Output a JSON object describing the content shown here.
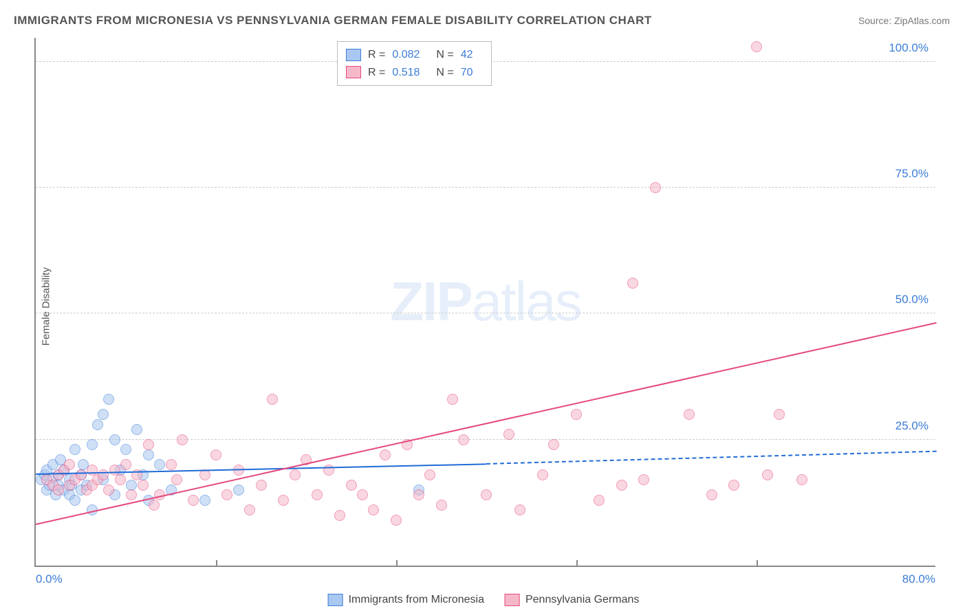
{
  "title": "IMMIGRANTS FROM MICRONESIA VS PENNSYLVANIA GERMAN FEMALE DISABILITY CORRELATION CHART",
  "source": "Source: ZipAtlas.com",
  "ylabel": "Female Disability",
  "watermark_a": "ZIP",
  "watermark_b": "atlas",
  "chart": {
    "type": "scatter",
    "xlim": [
      0,
      80
    ],
    "ylim": [
      0,
      105
    ],
    "xticks": [
      0,
      16,
      32,
      48,
      64,
      80
    ],
    "xtick_labels": [
      "0.0%",
      "",
      "",
      "",
      "",
      "80.0%"
    ],
    "yticks": [
      25,
      50,
      75,
      100
    ],
    "ytick_labels": [
      "25.0%",
      "50.0%",
      "75.0%",
      "100.0%"
    ],
    "background_color": "#ffffff",
    "grid_color": "#cccccc",
    "axis_color": "#888888",
    "point_radius": 8,
    "point_opacity": 0.55,
    "series": [
      {
        "name": "Immigrants from Micronesia",
        "color_fill": "#a9c7f0",
        "color_stroke": "#3b7dd8",
        "R": "0.082",
        "N": "42",
        "trend": {
          "x1": 0,
          "y1": 18,
          "x2": 40,
          "y2": 20,
          "extend_x2": 80,
          "extend_y2": 22.5,
          "color": "#1f6bd6"
        },
        "points": [
          [
            0.5,
            17
          ],
          [
            0.8,
            18
          ],
          [
            1,
            15
          ],
          [
            1,
            19
          ],
          [
            1.2,
            16
          ],
          [
            1.5,
            17.5
          ],
          [
            1.5,
            20
          ],
          [
            1.8,
            14
          ],
          [
            2,
            18
          ],
          [
            2,
            16
          ],
          [
            2.2,
            21
          ],
          [
            2.5,
            15
          ],
          [
            2.5,
            19
          ],
          [
            3,
            17
          ],
          [
            3,
            14
          ],
          [
            3.2,
            16
          ],
          [
            3.5,
            13
          ],
          [
            3.5,
            23
          ],
          [
            4,
            18
          ],
          [
            4,
            15
          ],
          [
            4.2,
            20
          ],
          [
            4.5,
            16
          ],
          [
            5,
            11
          ],
          [
            5,
            24
          ],
          [
            5.5,
            28
          ],
          [
            6,
            30
          ],
          [
            6,
            17
          ],
          [
            6.5,
            33
          ],
          [
            7,
            25
          ],
          [
            7,
            14
          ],
          [
            7.5,
            19
          ],
          [
            8,
            23
          ],
          [
            8.5,
            16
          ],
          [
            9,
            27
          ],
          [
            9.5,
            18
          ],
          [
            10,
            13
          ],
          [
            10,
            22
          ],
          [
            11,
            20
          ],
          [
            12,
            15
          ],
          [
            15,
            13
          ],
          [
            18,
            15
          ],
          [
            34,
            15
          ]
        ]
      },
      {
        "name": "Pennsylvania Germans",
        "color_fill": "#f5b8c9",
        "color_stroke": "#e6487c",
        "R": "0.518",
        "N": "70",
        "trend": {
          "x1": 0,
          "y1": 8,
          "x2": 80,
          "y2": 48,
          "color": "#e6487c"
        },
        "points": [
          [
            1,
            17
          ],
          [
            1.5,
            16
          ],
          [
            2,
            18
          ],
          [
            2,
            15
          ],
          [
            2.5,
            19
          ],
          [
            3,
            16
          ],
          [
            3,
            20
          ],
          [
            3.5,
            17
          ],
          [
            4,
            18
          ],
          [
            4.5,
            15
          ],
          [
            5,
            19
          ],
          [
            5,
            16
          ],
          [
            5.5,
            17
          ],
          [
            6,
            18
          ],
          [
            6.5,
            15
          ],
          [
            7,
            19
          ],
          [
            7.5,
            17
          ],
          [
            8,
            20
          ],
          [
            8.5,
            14
          ],
          [
            9,
            18
          ],
          [
            9.5,
            16
          ],
          [
            10,
            24
          ],
          [
            10.5,
            12
          ],
          [
            11,
            14
          ],
          [
            12,
            20
          ],
          [
            12.5,
            17
          ],
          [
            13,
            25
          ],
          [
            14,
            13
          ],
          [
            15,
            18
          ],
          [
            16,
            22
          ],
          [
            17,
            14
          ],
          [
            18,
            19
          ],
          [
            19,
            11
          ],
          [
            20,
            16
          ],
          [
            21,
            33
          ],
          [
            22,
            13
          ],
          [
            23,
            18
          ],
          [
            24,
            21
          ],
          [
            25,
            14
          ],
          [
            26,
            19
          ],
          [
            27,
            10
          ],
          [
            28,
            16
          ],
          [
            29,
            14
          ],
          [
            30,
            11
          ],
          [
            31,
            22
          ],
          [
            32,
            9
          ],
          [
            33,
            24
          ],
          [
            34,
            14
          ],
          [
            35,
            18
          ],
          [
            36,
            12
          ],
          [
            37,
            33
          ],
          [
            38,
            25
          ],
          [
            40,
            14
          ],
          [
            42,
            26
          ],
          [
            43,
            11
          ],
          [
            45,
            18
          ],
          [
            46,
            24
          ],
          [
            48,
            30
          ],
          [
            50,
            13
          ],
          [
            52,
            16
          ],
          [
            53,
            56
          ],
          [
            54,
            17
          ],
          [
            55,
            75
          ],
          [
            58,
            30
          ],
          [
            60,
            14
          ],
          [
            62,
            16
          ],
          [
            64,
            103
          ],
          [
            65,
            18
          ],
          [
            66,
            30
          ],
          [
            68,
            17
          ]
        ]
      }
    ]
  },
  "legend_stats": [
    {
      "swatch_fill": "#a9c7f0",
      "swatch_stroke": "#3b7dd8",
      "r_label": "R =",
      "r_val": "0.082",
      "n_label": "N =",
      "n_val": "42"
    },
    {
      "swatch_fill": "#f5b8c9",
      "swatch_stroke": "#e6487c",
      "r_label": "R =",
      "r_val": "0.518",
      "n_label": "N =",
      "n_val": "70"
    }
  ],
  "bottom_legend": [
    {
      "swatch_fill": "#a9c7f0",
      "swatch_stroke": "#3b7dd8",
      "label": "Immigrants from Micronesia"
    },
    {
      "swatch_fill": "#f5b8c9",
      "swatch_stroke": "#e6487c",
      "label": "Pennsylvania Germans"
    }
  ]
}
